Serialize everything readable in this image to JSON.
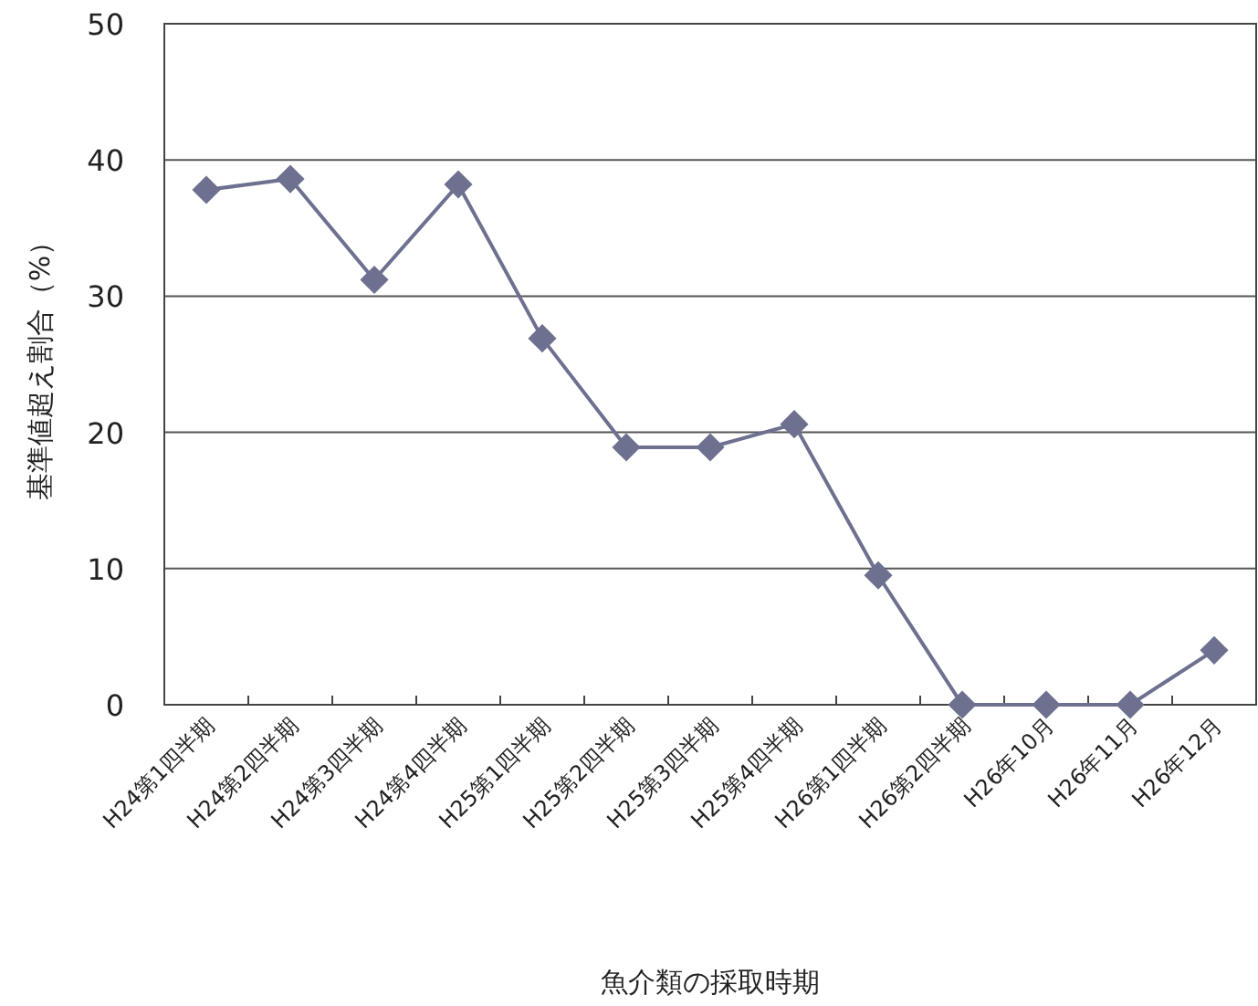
{
  "chart_data": {
    "type": "line",
    "xlabel": "魚介類の採取時期",
    "ylabel": "基準値超え割合（%）",
    "categories": [
      "H24第1四半期",
      "H24第2四半期",
      "H24第3四半期",
      "H24第4四半期",
      "H25第1四半期",
      "H25第2四半期",
      "H25第3四半期",
      "H25第4四半期",
      "H26第1四半期",
      "H26第2四半期",
      "H26年10月",
      "H26年11月",
      "H26年12月"
    ],
    "series": [
      {
        "color": "#6e7090",
        "values": [
          37.8,
          38.6,
          31.2,
          38.2,
          26.9,
          18.9,
          18.9,
          20.6,
          9.5,
          0,
          0,
          0,
          4
        ]
      }
    ],
    "ylim": [
      0,
      50
    ],
    "yticks": [
      0,
      10,
      20,
      30,
      40,
      50
    ],
    "grid": "y",
    "marker": "diamond",
    "line_style": "solid"
  }
}
